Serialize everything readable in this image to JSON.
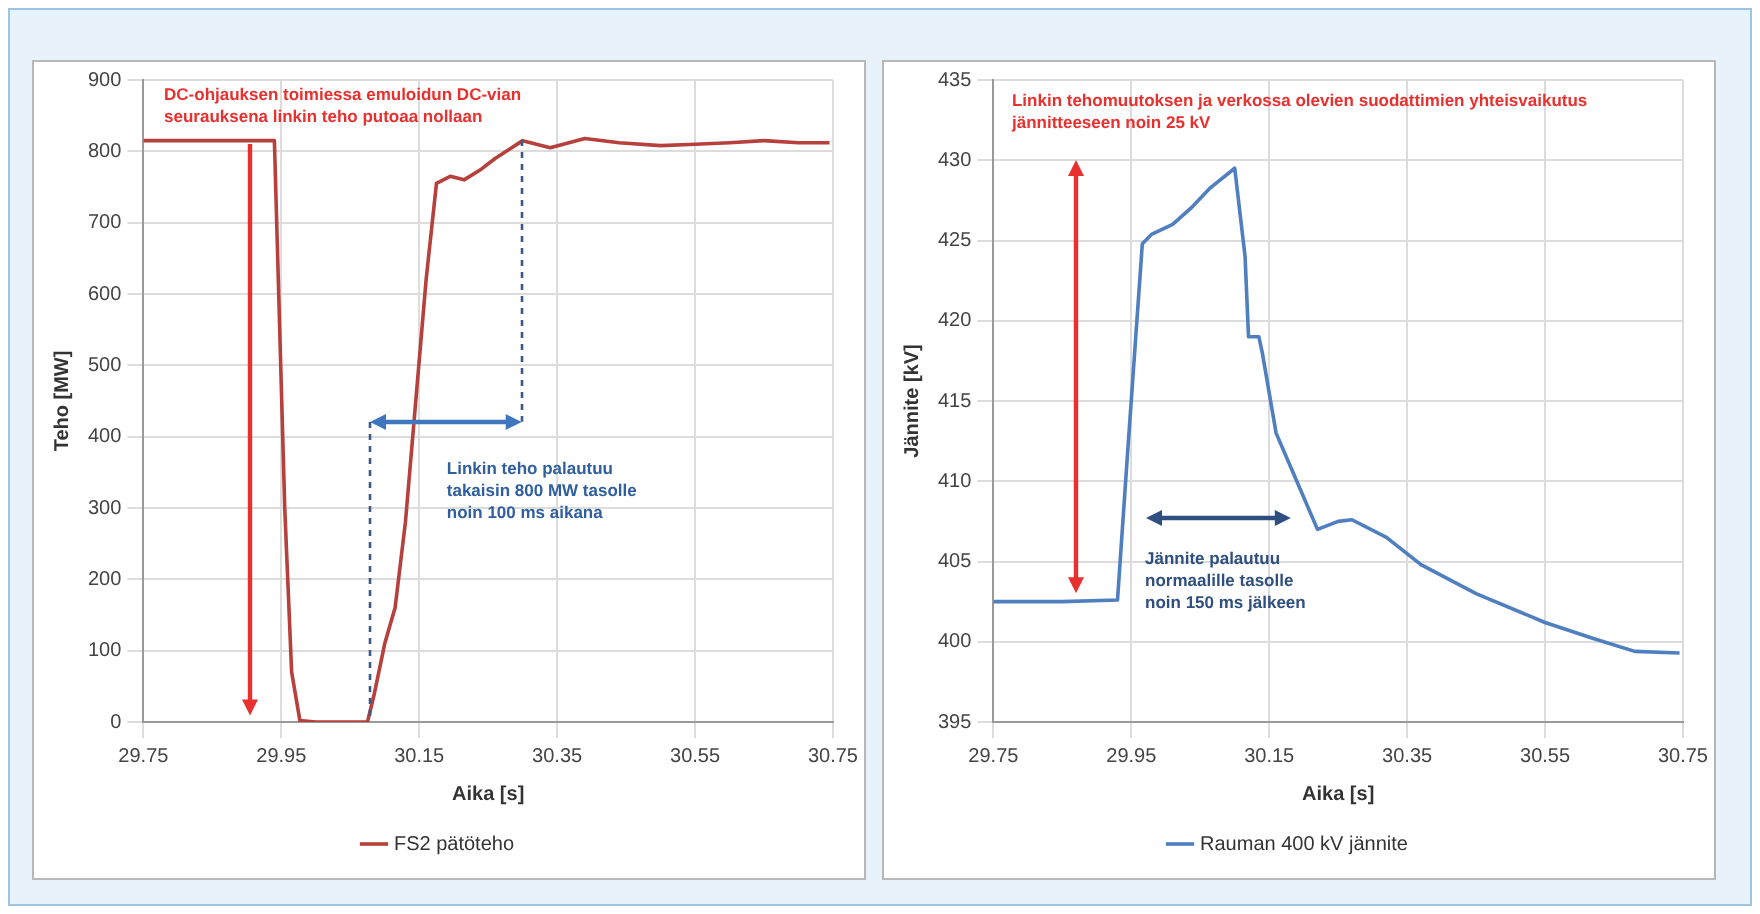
{
  "chart_data": [
    {
      "type": "line",
      "xlabel": "Aika [s]",
      "ylabel": "Teho [MW]",
      "grid": true,
      "legend": "bottom",
      "marker": "none",
      "x": [
        29.75,
        29.94,
        29.955,
        29.965,
        29.977,
        30.0,
        30.04,
        30.075,
        30.085,
        30.1,
        30.115,
        30.13,
        30.145,
        30.16,
        30.175,
        30.195,
        30.215,
        30.24,
        30.26,
        30.3,
        30.34,
        30.39,
        30.44,
        30.5,
        30.55,
        30.6,
        30.65,
        30.7,
        30.745
      ],
      "series": [
        {
          "name": "FS2 pätöteho",
          "color": "#b5403c",
          "values": [
            815,
            815,
            300,
            70,
            2,
            0,
            0,
            0,
            40,
            110,
            160,
            280,
            450,
            620,
            755,
            765,
            760,
            775,
            790,
            815,
            805,
            818,
            812,
            808,
            810,
            812,
            815,
            812,
            812
          ]
        }
      ],
      "xlim": [
        29.75,
        30.75
      ],
      "xticks": [
        29.75,
        29.95,
        30.15,
        30.35,
        30.55,
        30.75
      ],
      "ylim": [
        0,
        900
      ],
      "yticks": [
        0,
        100,
        200,
        300,
        400,
        500,
        600,
        700,
        800,
        900
      ],
      "annotations": [
        "DC-ohjauksen toimiessa emuloidun DC-vian seurauksena linkin teho putoaa nollaan",
        "Linkin teho palautuu takaisin 800 MW tasolle noin 100 ms aikana"
      ]
    },
    {
      "type": "line",
      "xlabel": "Aika [s]",
      "ylabel": "Jännite [kV]",
      "grid": true,
      "legend": "bottom",
      "marker": "none",
      "x": [
        29.75,
        29.85,
        29.93,
        29.945,
        29.966,
        29.98,
        30.01,
        30.036,
        30.065,
        30.1,
        30.115,
        30.12,
        30.135,
        30.14,
        30.16,
        30.19,
        30.22,
        30.25,
        30.27,
        30.32,
        30.37,
        30.45,
        30.55,
        30.62,
        30.68,
        30.745
      ],
      "series": [
        {
          "name": "Rauman 400 kV jännite",
          "color": "#4f7fbf",
          "values": [
            402.5,
            402.5,
            402.6,
            412,
            424.8,
            425.4,
            426,
            427,
            428.3,
            429.5,
            424,
            419,
            419,
            418,
            413,
            410,
            407,
            407.5,
            407.6,
            406.5,
            404.8,
            403,
            401.2,
            400.2,
            399.4,
            399.3
          ]
        }
      ],
      "xlim": [
        29.75,
        30.75
      ],
      "xticks": [
        29.75,
        29.95,
        30.15,
        30.35,
        30.55,
        30.75
      ],
      "ylim": [
        395,
        435
      ],
      "yticks": [
        395,
        400,
        405,
        410,
        415,
        420,
        425,
        430,
        435
      ],
      "annotations": [
        "Linkin tehomuutoksen ja verkossa olevien suodattimien yhteisvaikutus jännitteeseen noin 25 kV",
        "Jännite palautuu normaalille tasolle noin 150 ms jälkeen"
      ]
    }
  ]
}
